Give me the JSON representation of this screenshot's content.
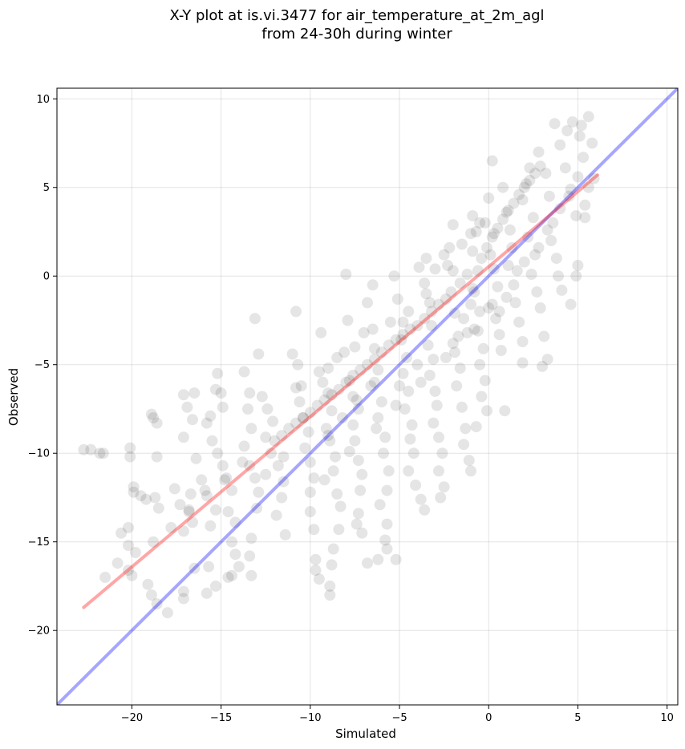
{
  "chart_data": {
    "type": "scatter",
    "title_line1": "X-Y plot at is.vi.3477 for air_temperature_at_2m_agl",
    "title_line2": "from 24-30h during winter",
    "xlabel": "Simulated",
    "ylabel": "Observed",
    "xlim": [
      -24.2,
      10.6
    ],
    "ylim": [
      -24.2,
      10.6
    ],
    "x_ticks": [
      -20,
      -15,
      -10,
      -5,
      0,
      5,
      10
    ],
    "y_ticks": [
      -20,
      -15,
      -10,
      -5,
      0,
      5,
      10
    ],
    "x_tick_labels": [
      "−20",
      "−15",
      "−10",
      "−5",
      "0",
      "5",
      "10"
    ],
    "y_tick_labels": [
      "−20",
      "−15",
      "−10",
      "−5",
      "0",
      "5",
      "10"
    ],
    "grid": true,
    "identity_line": {
      "color": "#0000ff",
      "opacity": 0.35,
      "from": [
        -24.2,
        -24.2
      ],
      "to": [
        10.6,
        10.6
      ]
    },
    "regression_line": {
      "color": "#ff0000",
      "opacity": 0.35,
      "from": [
        -22.7,
        -18.7
      ],
      "to": [
        6.1,
        5.7
      ]
    },
    "point_color": "#000000",
    "point_opacity": 0.1,
    "points": [
      [
        -22.7,
        -9.8
      ],
      [
        -22.3,
        -9.8
      ],
      [
        -21.8,
        -10.0
      ],
      [
        -21.6,
        -10.0
      ],
      [
        -20.1,
        -9.7
      ],
      [
        -20.1,
        -10.2
      ],
      [
        -19.9,
        -11.9
      ],
      [
        -19.9,
        -12.2
      ],
      [
        -19.5,
        -12.4
      ],
      [
        -19.2,
        -12.6
      ],
      [
        -18.9,
        -7.8
      ],
      [
        -18.8,
        -8.0
      ],
      [
        -18.6,
        -8.3
      ],
      [
        -18.7,
        -12.5
      ],
      [
        -18.6,
        -10.2
      ],
      [
        -18.5,
        -13.1
      ],
      [
        -18.6,
        -18.5
      ],
      [
        -18.9,
        -18.0
      ],
      [
        -19.1,
        -17.4
      ],
      [
        -18.0,
        -19.0
      ],
      [
        -20.6,
        -14.5
      ],
      [
        -20.2,
        -14.2
      ],
      [
        -20.2,
        -15.2
      ],
      [
        -20.2,
        -16.6
      ],
      [
        -20.0,
        -16.9
      ],
      [
        -17.6,
        -12.0
      ],
      [
        -17.3,
        -12.9
      ],
      [
        -17.1,
        -6.7
      ],
      [
        -16.9,
        -7.4
      ],
      [
        -17.1,
        -9.1
      ],
      [
        -16.5,
        -6.6
      ],
      [
        -16.6,
        -8.1
      ],
      [
        -16.4,
        -10.3
      ],
      [
        -16.1,
        -11.5
      ],
      [
        -16.7,
        -12.3
      ],
      [
        -16.8,
        -13.2
      ],
      [
        -16.6,
        -13.9
      ],
      [
        -17.1,
        -14.4
      ],
      [
        -16.5,
        -16.5
      ],
      [
        -17.1,
        -17.8
      ],
      [
        -17.1,
        -18.2
      ],
      [
        -15.9,
        -12.1
      ],
      [
        -15.3,
        -13.2
      ],
      [
        -15.6,
        -14.1
      ],
      [
        -15.7,
        -16.4
      ],
      [
        -15.3,
        -17.5
      ],
      [
        -15.8,
        -17.9
      ],
      [
        -15.2,
        -5.5
      ],
      [
        -15.3,
        -6.4
      ],
      [
        -15.0,
        -6.6
      ],
      [
        -14.9,
        -7.4
      ],
      [
        -15.6,
        -7.9
      ],
      [
        -15.8,
        -8.3
      ],
      [
        -15.5,
        -9.3
      ],
      [
        -15.2,
        -10.0
      ],
      [
        -14.9,
        -10.7
      ],
      [
        -14.7,
        -11.4
      ],
      [
        -14.4,
        -12.1
      ],
      [
        -14.6,
        -13.3
      ],
      [
        -14.2,
        -13.9
      ],
      [
        -14.4,
        -15.0
      ],
      [
        -14.2,
        -15.7
      ],
      [
        -14.0,
        -16.4
      ],
      [
        -14.4,
        -16.9
      ],
      [
        -14.6,
        -17.0
      ],
      [
        -13.7,
        -5.4
      ],
      [
        -13.4,
        -6.6
      ],
      [
        -13.5,
        -7.5
      ],
      [
        -13.3,
        -8.6
      ],
      [
        -13.7,
        -9.6
      ],
      [
        -13.4,
        -10.7
      ],
      [
        -13.1,
        -11.4
      ],
      [
        -12.9,
        -12.2
      ],
      [
        -13.0,
        -13.1
      ],
      [
        -13.3,
        -14.8
      ],
      [
        -13.4,
        -15.8
      ],
      [
        -13.3,
        -16.9
      ],
      [
        -13.1,
        -2.4
      ],
      [
        -12.9,
        -4.4
      ],
      [
        -12.7,
        -6.8
      ],
      [
        -12.4,
        -7.5
      ],
      [
        -12.1,
        -8.2
      ],
      [
        -12.5,
        -9.1
      ],
      [
        -12.2,
        -10.0
      ],
      [
        -11.8,
        -10.7
      ],
      [
        -11.5,
        -11.6
      ],
      [
        -11.6,
        -12.5
      ],
      [
        -11.9,
        -13.5
      ],
      [
        -11.4,
        -14.6
      ],
      [
        -11.0,
        -4.4
      ],
      [
        -10.8,
        -2.0
      ],
      [
        -10.7,
        -5.0
      ],
      [
        -10.8,
        -6.3
      ],
      [
        -10.6,
        -7.1
      ],
      [
        -10.4,
        -8.0
      ],
      [
        -10.1,
        -8.8
      ],
      [
        -10.3,
        -9.7
      ],
      [
        -10.0,
        -10.5
      ],
      [
        -9.8,
        -11.4
      ],
      [
        -10.0,
        -12.2
      ],
      [
        -10.0,
        -13.3
      ],
      [
        -9.8,
        -14.3
      ],
      [
        -9.7,
        -16.0
      ],
      [
        -9.7,
        -16.6
      ],
      [
        -9.5,
        -17.1
      ],
      [
        -9.4,
        -3.2
      ],
      [
        -9.0,
        -5.2
      ],
      [
        -9.3,
        -6.0
      ],
      [
        -9.0,
        -6.6
      ],
      [
        -8.8,
        -7.6
      ],
      [
        -9.1,
        -8.6
      ],
      [
        -8.9,
        -9.3
      ],
      [
        -8.6,
        -10.2
      ],
      [
        -8.7,
        -11.0
      ],
      [
        -8.5,
        -12.3
      ],
      [
        -8.3,
        -13.0
      ],
      [
        -8.4,
        -14.3
      ],
      [
        -8.7,
        -15.4
      ],
      [
        -8.8,
        -16.3
      ],
      [
        -8.9,
        -17.5
      ],
      [
        -8.9,
        -18.0
      ],
      [
        -8.0,
        0.1
      ],
      [
        -7.9,
        -2.5
      ],
      [
        -8.1,
        -4.3
      ],
      [
        -7.8,
        -5.9
      ],
      [
        -7.6,
        -6.8
      ],
      [
        -7.3,
        -7.5
      ],
      [
        -7.6,
        -8.4
      ],
      [
        -7.5,
        -9.3
      ],
      [
        -7.3,
        -10.4
      ],
      [
        -7.1,
        -11.2
      ],
      [
        -7.2,
        -12.1
      ],
      [
        -7.3,
        -13.4
      ],
      [
        -7.4,
        -14.0
      ],
      [
        -7.1,
        -14.5
      ],
      [
        -6.8,
        -16.2
      ],
      [
        -7.0,
        -3.2
      ],
      [
        -6.8,
        -1.5
      ],
      [
        -6.5,
        -0.5
      ],
      [
        -6.4,
        -4.1
      ],
      [
        -6.2,
        -5.3
      ],
      [
        -6.4,
        -6.0
      ],
      [
        -6.0,
        -7.1
      ],
      [
        -6.2,
        -8.0
      ],
      [
        -5.8,
        -9.1
      ],
      [
        -5.9,
        -10.0
      ],
      [
        -5.6,
        -11.0
      ],
      [
        -5.7,
        -12.1
      ],
      [
        -6.1,
        -12.9
      ],
      [
        -5.7,
        -14.0
      ],
      [
        -5.8,
        -14.9
      ],
      [
        -5.7,
        -15.4
      ],
      [
        -6.2,
        -16.0
      ],
      [
        -5.2,
        -16.0
      ],
      [
        -5.3,
        0.0
      ],
      [
        -5.1,
        -1.3
      ],
      [
        -4.8,
        -2.6
      ],
      [
        -4.9,
        -3.6
      ],
      [
        -4.6,
        -4.6
      ],
      [
        -4.8,
        -5.5
      ],
      [
        -4.5,
        -6.5
      ],
      [
        -4.7,
        -7.5
      ],
      [
        -4.3,
        -8.4
      ],
      [
        -4.4,
        -9.2
      ],
      [
        -4.2,
        -10.0
      ],
      [
        -4.5,
        -11.0
      ],
      [
        -4.1,
        -11.8
      ],
      [
        -3.8,
        -12.6
      ],
      [
        -3.6,
        -13.2
      ],
      [
        -3.9,
        0.5
      ],
      [
        -3.5,
        1.0
      ],
      [
        -3.6,
        -0.4
      ],
      [
        -3.3,
        -1.5
      ],
      [
        -3.2,
        -2.8
      ],
      [
        -3.4,
        -3.9
      ],
      [
        -3.1,
        -4.7
      ],
      [
        -3.3,
        -5.6
      ],
      [
        -3.0,
        -6.5
      ],
      [
        -2.9,
        -7.3
      ],
      [
        -3.1,
        -8.3
      ],
      [
        -2.8,
        -9.1
      ],
      [
        -2.6,
        -10.0
      ],
      [
        -2.8,
        -11.0
      ],
      [
        -2.5,
        -11.9
      ],
      [
        -2.7,
        -12.5
      ],
      [
        -2.3,
        0.6
      ],
      [
        -2.2,
        1.6
      ],
      [
        -2.0,
        2.9
      ],
      [
        -2.1,
        -0.9
      ],
      [
        -1.9,
        -2.1
      ],
      [
        -1.7,
        -3.4
      ],
      [
        -1.9,
        -4.3
      ],
      [
        -1.6,
        -5.2
      ],
      [
        -1.8,
        -6.2
      ],
      [
        -1.5,
        -7.4
      ],
      [
        -1.3,
        -8.6
      ],
      [
        -1.4,
        -9.5
      ],
      [
        -1.1,
        -10.4
      ],
      [
        -1.0,
        -11.0
      ],
      [
        -0.9,
        3.4
      ],
      [
        -0.7,
        2.5
      ],
      [
        -0.9,
        1.4
      ],
      [
        -0.6,
        0.3
      ],
      [
        -0.8,
        -0.9
      ],
      [
        -0.5,
        -2.0
      ],
      [
        -0.6,
        -3.1
      ],
      [
        -0.3,
        -4.1
      ],
      [
        -0.5,
        -5.0
      ],
      [
        -0.2,
        -5.9
      ],
      [
        -0.4,
        -6.8
      ],
      [
        -0.1,
        -7.6
      ],
      [
        -0.7,
        -8.5
      ],
      [
        -0.2,
        3.0
      ],
      [
        0.0,
        4.4
      ],
      [
        0.2,
        6.5
      ],
      [
        0.3,
        2.4
      ],
      [
        0.1,
        1.2
      ],
      [
        0.3,
        0.4
      ],
      [
        0.5,
        -0.6
      ],
      [
        0.2,
        -1.6
      ],
      [
        0.4,
        -2.4
      ],
      [
        0.6,
        -3.3
      ],
      [
        0.7,
        -4.2
      ],
      [
        0.9,
        -7.6
      ],
      [
        0.8,
        5.0
      ],
      [
        1.0,
        3.6
      ],
      [
        1.2,
        2.6
      ],
      [
        1.3,
        1.6
      ],
      [
        1.1,
        0.6
      ],
      [
        1.4,
        -0.5
      ],
      [
        1.5,
        -1.5
      ],
      [
        1.7,
        -2.6
      ],
      [
        1.9,
        -3.7
      ],
      [
        1.9,
        -4.9
      ],
      [
        1.9,
        4.3
      ],
      [
        2.1,
        5.2
      ],
      [
        2.3,
        6.1
      ],
      [
        2.5,
        3.3
      ],
      [
        2.2,
        2.2
      ],
      [
        2.6,
        1.2
      ],
      [
        2.4,
        0.1
      ],
      [
        2.7,
        -0.9
      ],
      [
        2.9,
        -1.8
      ],
      [
        3.1,
        -3.4
      ],
      [
        3.3,
        -4.7
      ],
      [
        3.0,
        -5.1
      ],
      [
        2.8,
        7.0
      ],
      [
        3.2,
        5.8
      ],
      [
        3.4,
        4.5
      ],
      [
        3.6,
        3.0
      ],
      [
        3.5,
        2.0
      ],
      [
        3.8,
        1.0
      ],
      [
        3.9,
        0.0
      ],
      [
        4.1,
        -0.8
      ],
      [
        3.7,
        8.6
      ],
      [
        4.0,
        7.4
      ],
      [
        4.3,
        6.1
      ],
      [
        4.6,
        4.9
      ],
      [
        4.9,
        3.4
      ],
      [
        4.4,
        8.2
      ],
      [
        4.7,
        8.7
      ],
      [
        5.1,
        7.9
      ],
      [
        5.3,
        6.7
      ],
      [
        5.6,
        5.0
      ],
      [
        5.4,
        3.3
      ],
      [
        5.0,
        0.6
      ],
      [
        4.9,
        0.0
      ],
      [
        4.6,
        -1.6
      ],
      [
        5.2,
        8.5
      ],
      [
        5.6,
        9.0
      ],
      [
        5.8,
        7.5
      ],
      [
        5.9,
        5.5
      ],
      [
        5.4,
        4.0
      ],
      [
        -0.9,
        -0.7
      ],
      [
        -1.2,
        0.1
      ],
      [
        -1.6,
        -0.4
      ],
      [
        -2.0,
        0.3
      ],
      [
        -2.4,
        -1.3
      ],
      [
        -2.8,
        -1.6
      ],
      [
        -3.2,
        -2.0
      ],
      [
        -3.6,
        -2.4
      ],
      [
        -4.0,
        -2.8
      ],
      [
        -4.4,
        -3.0
      ],
      [
        -4.8,
        -3.3
      ],
      [
        -5.2,
        -3.6
      ],
      [
        -5.6,
        -3.9
      ],
      [
        -6.0,
        -4.3
      ],
      [
        -6.4,
        -4.7
      ],
      [
        -6.8,
        -5.0
      ],
      [
        -7.2,
        -5.3
      ],
      [
        -7.6,
        -5.6
      ],
      [
        -8.0,
        -6.0
      ],
      [
        -8.4,
        -6.4
      ],
      [
        -8.8,
        -6.7
      ],
      [
        -9.2,
        -7.0
      ],
      [
        -9.6,
        -7.3
      ],
      [
        -10.0,
        -7.7
      ],
      [
        -10.4,
        -8.0
      ],
      [
        -10.8,
        -8.3
      ],
      [
        -11.2,
        -8.6
      ],
      [
        -11.6,
        -9.0
      ],
      [
        -12.0,
        -9.3
      ],
      [
        -0.4,
        1.0
      ],
      [
        -0.1,
        1.6
      ],
      [
        0.2,
        2.2
      ],
      [
        0.5,
        2.7
      ],
      [
        0.8,
        3.2
      ],
      [
        1.1,
        3.7
      ],
      [
        1.4,
        4.1
      ],
      [
        1.7,
        4.6
      ],
      [
        2.0,
        5.0
      ],
      [
        2.3,
        5.4
      ],
      [
        2.6,
        5.8
      ],
      [
        2.9,
        6.2
      ],
      [
        -1.5,
        1.8
      ],
      [
        -1.0,
        2.4
      ],
      [
        -0.5,
        3.0
      ],
      [
        -2.5,
        1.2
      ],
      [
        -3.0,
        0.4
      ],
      [
        -1.0,
        -1.6
      ],
      [
        -1.4,
        -2.4
      ],
      [
        -0.8,
        -3.0
      ],
      [
        -2.0,
        -3.8
      ],
      [
        -4.0,
        -5.0
      ],
      [
        -5.0,
        -6.2
      ],
      [
        -6.6,
        -6.2
      ],
      [
        -7.4,
        -7.0
      ],
      [
        -8.2,
        -8.0
      ],
      [
        -9.0,
        -9.0
      ],
      [
        -3.5,
        -1.0
      ],
      [
        -4.5,
        -2.0
      ],
      [
        -5.5,
        -2.6
      ],
      [
        -6.5,
        -3.0
      ],
      [
        -7.5,
        -4.0
      ],
      [
        -8.5,
        -4.6
      ],
      [
        -9.5,
        -5.4
      ],
      [
        -10.5,
        -6.2
      ],
      [
        0.6,
        -2.0
      ],
      [
        1.0,
        -1.2
      ],
      [
        1.6,
        0.3
      ],
      [
        2.0,
        0.8
      ],
      [
        2.8,
        1.6
      ],
      [
        3.3,
        2.6
      ],
      [
        4.0,
        3.8
      ],
      [
        4.5,
        4.5
      ],
      [
        5.0,
        5.6
      ],
      [
        -12.5,
        -11.2
      ],
      [
        -11.5,
        -10.2
      ],
      [
        -13.8,
        -10.5
      ],
      [
        -14.8,
        -11.5
      ],
      [
        -15.8,
        -12.4
      ],
      [
        -16.8,
        -13.3
      ],
      [
        -17.8,
        -14.2
      ],
      [
        -18.8,
        -15.0
      ],
      [
        -19.8,
        -15.6
      ],
      [
        -20.8,
        -16.2
      ],
      [
        -21.5,
        -17.0
      ],
      [
        -9.2,
        -11.5
      ],
      [
        -7.8,
        -9.9
      ],
      [
        -6.3,
        -8.6
      ],
      [
        -5.2,
        -7.3
      ],
      [
        -3.8,
        -6.0
      ],
      [
        -2.4,
        -4.6
      ],
      [
        -1.2,
        -3.2
      ],
      [
        0.0,
        -1.8
      ]
    ]
  }
}
